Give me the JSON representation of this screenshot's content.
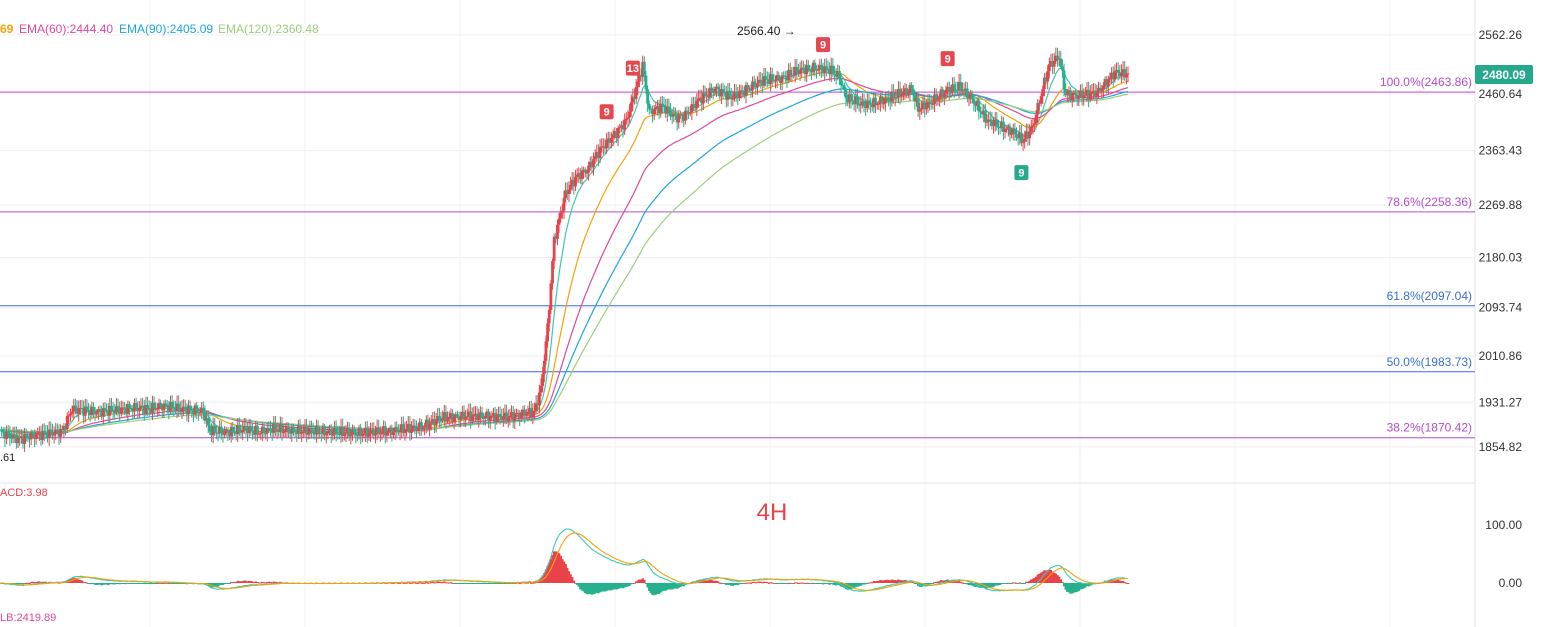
{
  "legend": {
    "ema_partial": {
      "text": "69",
      "color": "#f0a30a"
    },
    "ema60": {
      "text": "EMA(60):2444.40",
      "color": "#e0489a"
    },
    "ema90": {
      "text": "EMA(90):2405.09",
      "color": "#1ea7d8"
    },
    "ema120": {
      "text": "EMA(120):2360.48",
      "color": "#9ccf7c"
    }
  },
  "timeframe_label": "4H",
  "macd_label": "ACD:3.98",
  "bottom_label": "LB:2419.89",
  "low_label": ".61",
  "high_marker": "2566.40 →",
  "current_price": "2480.09",
  "colors": {
    "up": "#e8434b",
    "down": "#26b08d",
    "grid": "#eeeeee",
    "fib_blue": "#3b6fd4",
    "fib_purple": "#b24fc9",
    "badge_green": "#26a88a",
    "badge_red": "#e34851"
  },
  "chart_data": {
    "type": "candlestick",
    "price_axis": {
      "ticks": [
        "2562.26",
        "2460.64",
        "2363.43",
        "2269.88",
        "2180.03",
        "2093.74",
        "2010.86",
        "1931.27",
        "1854.82"
      ],
      "range": [
        1815,
        2605
      ]
    },
    "fib_levels": [
      {
        "label": "100.0%(2463.86)",
        "value": 2463.86,
        "color": "#b24fc9"
      },
      {
        "label": "78.6%(2258.36)",
        "value": 2258.36,
        "color": "#b24fc9"
      },
      {
        "label": "61.8%(2097.04)",
        "value": 2097.04,
        "color": "#3b6fd4"
      },
      {
        "label": "50.0%(1983.73)",
        "value": 1983.73,
        "color": "#3b6fd4"
      },
      {
        "label": "38.2%(1870.42)",
        "value": 1870.42,
        "color": "#b24fc9"
      }
    ],
    "close_anchors": [
      [
        0,
        1880
      ],
      [
        12,
        1868
      ],
      [
        20,
        1875
      ],
      [
        30,
        1878
      ],
      [
        38,
        1882
      ],
      [
        44,
        1920
      ],
      [
        60,
        1915
      ],
      [
        70,
        1918
      ],
      [
        82,
        1922
      ],
      [
        90,
        1920
      ],
      [
        100,
        1925
      ],
      [
        110,
        1920
      ],
      [
        124,
        1915
      ],
      [
        128,
        1882
      ],
      [
        140,
        1880
      ],
      [
        150,
        1885
      ],
      [
        158,
        1880
      ],
      [
        166,
        1885
      ],
      [
        180,
        1882
      ],
      [
        200,
        1880
      ],
      [
        220,
        1878
      ],
      [
        240,
        1882
      ],
      [
        258,
        1890
      ],
      [
        270,
        1905
      ],
      [
        290,
        1908
      ],
      [
        310,
        1906
      ],
      [
        318,
        1912
      ],
      [
        326,
        1915
      ],
      [
        330,
        1955
      ],
      [
        334,
        2060
      ],
      [
        338,
        2210
      ],
      [
        345,
        2290
      ],
      [
        352,
        2320
      ],
      [
        358,
        2330
      ],
      [
        366,
        2365
      ],
      [
        376,
        2395
      ],
      [
        382,
        2415
      ],
      [
        388,
        2470
      ],
      [
        392,
        2510
      ],
      [
        396,
        2430
      ],
      [
        404,
        2440
      ],
      [
        412,
        2420
      ],
      [
        418,
        2425
      ],
      [
        426,
        2450
      ],
      [
        436,
        2470
      ],
      [
        446,
        2455
      ],
      [
        456,
        2470
      ],
      [
        466,
        2485
      ],
      [
        476,
        2487
      ],
      [
        486,
        2500
      ],
      [
        496,
        2505
      ],
      [
        506,
        2502
      ],
      [
        512,
        2490
      ],
      [
        516,
        2455
      ],
      [
        526,
        2442
      ],
      [
        534,
        2445
      ],
      [
        542,
        2452
      ],
      [
        548,
        2460
      ],
      [
        556,
        2470
      ],
      [
        560,
        2435
      ],
      [
        566,
        2442
      ],
      [
        578,
        2468
      ],
      [
        586,
        2472
      ],
      [
        594,
        2448
      ],
      [
        602,
        2415
      ],
      [
        610,
        2405
      ],
      [
        618,
        2395
      ],
      [
        624,
        2380
      ],
      [
        630,
        2405
      ],
      [
        636,
        2470
      ],
      [
        640,
        2510
      ],
      [
        646,
        2525
      ],
      [
        650,
        2460
      ],
      [
        656,
        2458
      ],
      [
        664,
        2460
      ],
      [
        670,
        2465
      ],
      [
        676,
        2485
      ],
      [
        680,
        2498
      ],
      [
        688,
        2495
      ]
    ],
    "macd": {
      "zero_tick": "0.00",
      "upper_tick": "100.00"
    },
    "td_markers": [
      {
        "label": "13",
        "type": "sell"
      },
      {
        "label": "9",
        "type": "sell"
      },
      {
        "label": "9",
        "type": "sell"
      },
      {
        "label": "9",
        "type": "sell"
      },
      {
        "label": "9",
        "type": "buy"
      }
    ]
  }
}
